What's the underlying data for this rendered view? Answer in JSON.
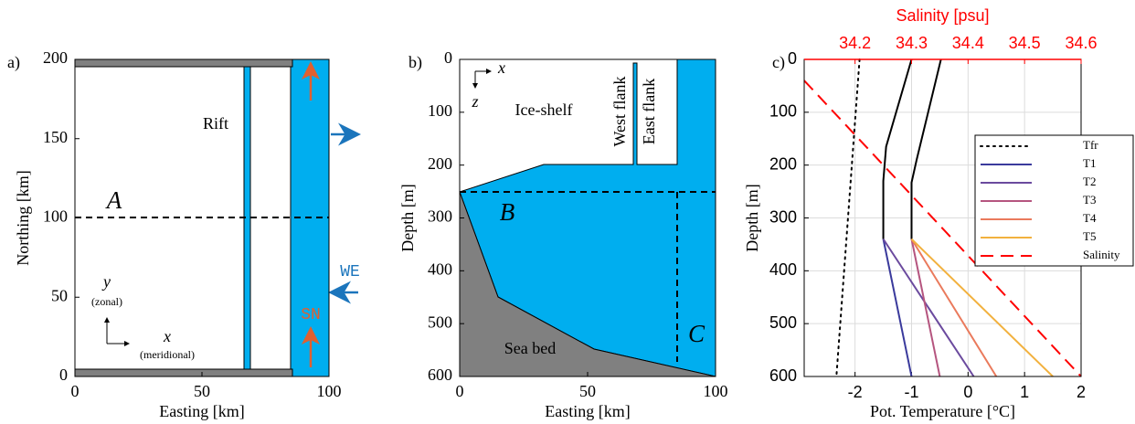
{
  "chart_data": [
    {
      "type": "plan",
      "panel_label": "a)",
      "xlabel": "Easting [km]",
      "ylabel": "Northing [km]",
      "xlim": [
        0,
        100
      ],
      "ylim": [
        0,
        200
      ],
      "xticks": [
        0,
        50,
        100
      ],
      "yticks": [
        0,
        50,
        100,
        150,
        200
      ],
      "annotations": {
        "rift": "Rift",
        "section": "A",
        "y_axis": "y",
        "y_note": "(zonal)",
        "x_axis": "x",
        "x_note": "(meridional)",
        "we": "WE",
        "sn": "SN"
      }
    },
    {
      "type": "section",
      "panel_label": "b)",
      "xlabel": "Easting [km]",
      "ylabel": "Depth [m]",
      "xlim": [
        0,
        100
      ],
      "ylim": [
        600,
        0
      ],
      "xticks": [
        0,
        50,
        100
      ],
      "yticks": [
        0,
        100,
        200,
        300,
        400,
        500,
        600
      ],
      "annotations": {
        "ice_shelf": "Ice-shelf",
        "west_flank": "West flank",
        "east_flank": "East flank",
        "sea_bed": "Sea bed",
        "section_b": "B",
        "section_c": "C",
        "x_axis": "x",
        "z_axis": "z"
      }
    },
    {
      "type": "line",
      "panel_label": "c)",
      "xlabel": "Pot. Temperature [°C]",
      "ylabel": "Depth [m]",
      "x2label": "Salinity [psu]",
      "xlim": [
        -2.9,
        2
      ],
      "xticks": [
        -2,
        -1,
        0,
        1,
        2
      ],
      "x2lim": [
        34.11,
        34.6
      ],
      "x2ticks": [
        34.2,
        34.3,
        34.4,
        34.5,
        34.6
      ],
      "ylim": [
        600,
        0
      ],
      "yticks": [
        0,
        100,
        200,
        300,
        400,
        500,
        600
      ],
      "grid": true,
      "legend": "right",
      "series": [
        {
          "name": "Tfr",
          "color": "#000000",
          "style": "dotted",
          "x": [
            -1.92,
            -2.33
          ],
          "y": [
            0,
            600
          ]
        },
        {
          "color": "#000000",
          "style": "solid",
          "x": [
            -1,
            -1.45,
            -1.5,
            -1.5
          ],
          "y": [
            0,
            165,
            230,
            340
          ]
        },
        {
          "color": "#000000",
          "style": "solid",
          "x": [
            -0.48,
            -0.91,
            -1,
            -1
          ],
          "y": [
            0,
            190,
            233,
            340
          ]
        },
        {
          "name": "T1",
          "color": "#3a3a9c",
          "style": "solid",
          "x": [
            -1.5,
            -1
          ],
          "y": [
            340,
            600
          ]
        },
        {
          "name": "T2",
          "color": "#6b4a9e",
          "style": "solid",
          "x": [
            -1.5,
            0.1
          ],
          "y": [
            340,
            600
          ]
        },
        {
          "name": "T3",
          "color": "#b5557f",
          "style": "solid",
          "x": [
            -1,
            -0.5
          ],
          "y": [
            340,
            600
          ]
        },
        {
          "name": "T4",
          "color": "#ea7a5c",
          "style": "solid",
          "x": [
            -1,
            0.5
          ],
          "y": [
            340,
            600
          ]
        },
        {
          "name": "T5",
          "color": "#f2b13e",
          "style": "solid",
          "x": [
            -1,
            1.5
          ],
          "y": [
            340,
            600
          ]
        },
        {
          "name": "Salinity",
          "color": "#ff0000",
          "style": "dashed",
          "axis": "x2",
          "x": [
            34.11,
            34.6
          ],
          "y": [
            40,
            600
          ]
        }
      ]
    }
  ]
}
